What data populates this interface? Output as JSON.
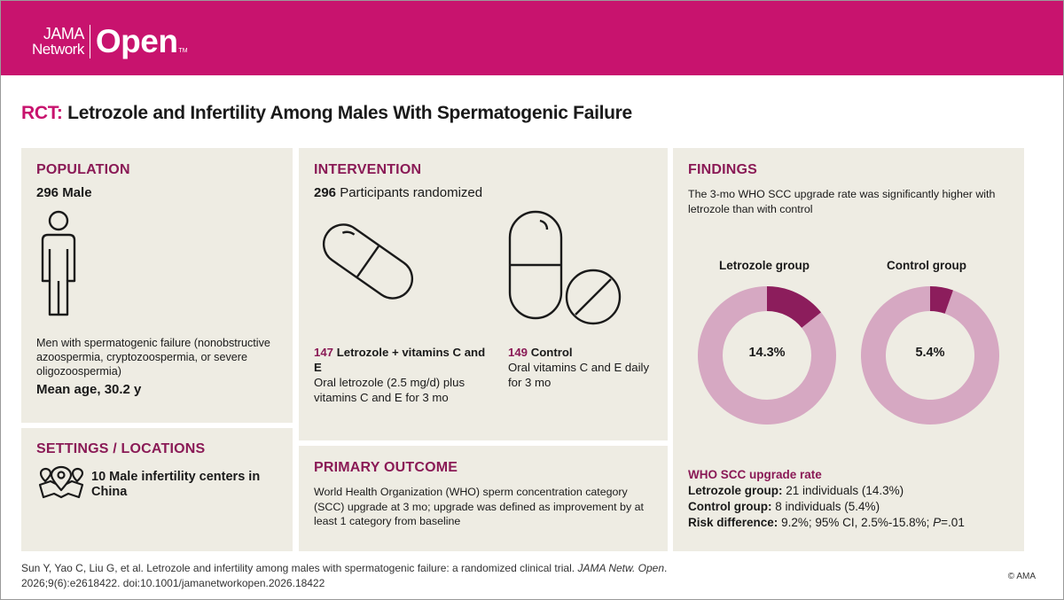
{
  "brand": {
    "line1": "JAMA",
    "line2": "Network",
    "open": "Open",
    "tm": "TM"
  },
  "title": {
    "prefix": "RCT:",
    "text": "Letrozole and Infertility Among Males With Spermatogenic Failure"
  },
  "population": {
    "heading": "POPULATION",
    "count": "296 Male",
    "description": "Men with spermatogenic failure (nonobstructive azoospermia, cryptozoospermia, or severe oligozoospermia)",
    "mean_age": "Mean age, 30.2 y",
    "icon": "person-icon"
  },
  "settings": {
    "heading": "SETTINGS / LOCATIONS",
    "text": "10 Male infertility centers in China",
    "icon": "location-map-icon"
  },
  "intervention": {
    "heading": "INTERVENTION",
    "randomized_num": "296",
    "randomized_text": "Participants randomized",
    "arm1": {
      "num": "147",
      "name": "Letrozole + vitamins C and E",
      "detail": "Oral letrozole (2.5 mg/d) plus vitamins C and E for 3 mo",
      "icon": "capsule-icon"
    },
    "arm2": {
      "num": "149",
      "name": "Control",
      "detail": "Oral vitamins C and E daily for 3 mo",
      "icon": "capsule-tablet-icon"
    }
  },
  "outcome": {
    "heading": "PRIMARY OUTCOME",
    "text": "World Health Organization (WHO) sperm concentration category (SCC) upgrade at 3 mo; upgrade was defined as improvement by at least 1 category from baseline"
  },
  "findings": {
    "heading": "FINDINGS",
    "text": "The 3-mo WHO SCC upgrade rate was significantly higher with letrozole than with control",
    "groups": [
      {
        "label": "Letrozole group",
        "pct_label": "14.3%",
        "value": 14.3
      },
      {
        "label": "Control group",
        "pct_label": "5.4%",
        "value": 5.4
      }
    ],
    "colors": {
      "highlight": "#8c1d5c",
      "rest": "#d6a8c2"
    },
    "rate_heading": "WHO SCC upgrade rate",
    "rates": [
      {
        "label": "Letrozole group:",
        "value": "21 individuals (14.3%)"
      },
      {
        "label": "Control group:",
        "value": "8 individuals (5.4%)"
      },
      {
        "label": "Risk difference:",
        "value": "9.2%; 95% CI, 2.5%-15.8%; ",
        "p_label": "P",
        "p_value": "=.01"
      }
    ]
  },
  "citation": {
    "authors": "Sun Y, Yao C, Liu G, et al. Letrozole and infertility among males with spermatogenic failure: a randomized clinical trial. ",
    "journal": "JAMA Netw. Open",
    "rest": ". 2026;9(6):e2618422. doi:10.1001/jamanetworkopen.2026.18422"
  },
  "copyright": "© AMA"
}
